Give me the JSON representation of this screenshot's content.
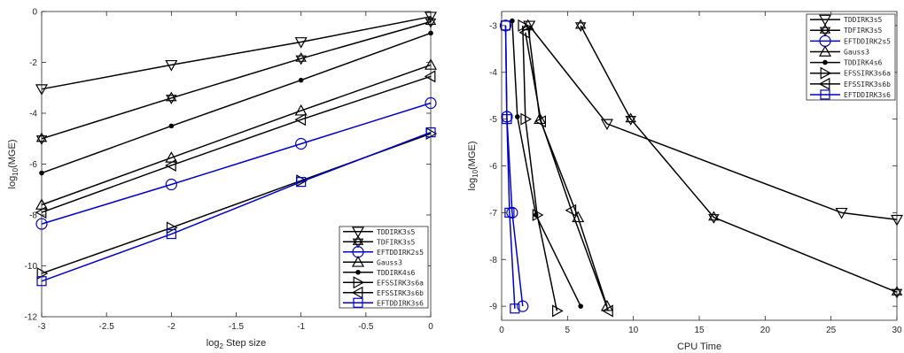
{
  "chart_data": [
    {
      "type": "line",
      "xlabel_main": "log",
      "xlabel_sub": "2",
      "xlabel_rest": " Step size",
      "ylabel_main": "log",
      "ylabel_sub": "10",
      "ylabel_rest": "(MGE)",
      "xlim": [
        -3,
        0
      ],
      "ylim": [
        -12,
        0
      ],
      "xticks": [
        -3,
        -2.5,
        -2,
        -1.5,
        -1,
        -0.5,
        0
      ],
      "yticks": [
        -12,
        -10,
        -8,
        -6,
        -4,
        -2,
        0
      ],
      "xtick_labels": [
        "-3",
        "-2.5",
        "-2",
        "-1.5",
        "-1",
        "-0.5",
        "0"
      ],
      "ytick_labels": [
        "-12",
        "-10",
        "-8",
        "-6",
        "-4",
        "-2",
        "0"
      ],
      "legend_position": "bottom-right",
      "series": [
        {
          "name": "TDDIRK3s5",
          "marker": "triangle-down",
          "color": "#000000",
          "x": [
            -3,
            -2,
            -1,
            0
          ],
          "y": [
            -3.05,
            -2.1,
            -1.2,
            -0.2
          ]
        },
        {
          "name": "TDFIRK3s5",
          "marker": "hexagram",
          "color": "#000000",
          "x": [
            -3,
            -2,
            -1,
            0
          ],
          "y": [
            -5.0,
            -3.4,
            -1.85,
            -0.4
          ]
        },
        {
          "name": "EFTDDIRK2s5",
          "marker": "circle",
          "color": "#0000cc",
          "x": [
            -3,
            -2,
            -1,
            0
          ],
          "y": [
            -8.35,
            -6.8,
            -5.2,
            -3.6
          ]
        },
        {
          "name": "Gauss3",
          "marker": "triangle-up",
          "color": "#000000",
          "x": [
            -3,
            -2,
            -1,
            0
          ],
          "y": [
            -7.6,
            -5.75,
            -3.9,
            -2.1
          ]
        },
        {
          "name": "TDDIRK4s6",
          "marker": "dot",
          "color": "#000000",
          "x": [
            -3,
            -2,
            -1,
            0
          ],
          "y": [
            -6.35,
            -4.5,
            -2.7,
            -0.85
          ]
        },
        {
          "name": "EFSSIRK3s6a",
          "marker": "triangle-right",
          "color": "#000000",
          "x": [
            -3,
            -2,
            -1,
            0
          ],
          "y": [
            -10.3,
            -8.5,
            -6.65,
            -4.8
          ]
        },
        {
          "name": "EFSSIRK3s6b",
          "marker": "triangle-left",
          "color": "#000000",
          "x": [
            -3,
            -2,
            -1,
            0
          ],
          "y": [
            -7.9,
            -6.05,
            -4.25,
            -2.55
          ]
        },
        {
          "name": "EFTDDIRK3s6",
          "marker": "square",
          "color": "#0000cc",
          "x": [
            -3,
            -2,
            -1,
            0
          ],
          "y": [
            -10.6,
            -8.75,
            -6.7,
            -4.75
          ]
        }
      ]
    },
    {
      "type": "line",
      "xlabel": "CPU Time",
      "ylabel_main": "log",
      "ylabel_sub": "10",
      "ylabel_rest": "(MGE)",
      "xlim": [
        0,
        30
      ],
      "ylim": [
        -9.3,
        -2.7
      ],
      "xticks": [
        0,
        5,
        10,
        15,
        20,
        25,
        30
      ],
      "yticks": [
        -9,
        -8,
        -7,
        -6,
        -5,
        -4,
        -3
      ],
      "xtick_labels": [
        "0",
        "5",
        "10",
        "15",
        "20",
        "25",
        "30"
      ],
      "ytick_labels": [
        "-9",
        "-8",
        "-7",
        "-6",
        "-5",
        "-4",
        "-3"
      ],
      "legend_position": "top-right",
      "series": [
        {
          "name": "TDDIRK3s5",
          "marker": "triangle-down",
          "color": "#000000",
          "x": [
            2.1,
            8.0,
            25.8,
            30.0
          ],
          "y": [
            -3.0,
            -5.1,
            -7.0,
            -7.15
          ]
        },
        {
          "name": "TDFIRK3s5",
          "marker": "hexagram",
          "color": "#000000",
          "x": [
            6.0,
            9.8,
            16.1,
            30.0
          ],
          "y": [
            -3.0,
            -5.0,
            -7.1,
            -8.7
          ]
        },
        {
          "name": "EFTDDIRK2s5",
          "marker": "circle",
          "color": "#0000cc",
          "x": [
            0.3,
            0.4,
            0.8,
            1.6
          ],
          "y": [
            -3.0,
            -4.95,
            -7.0,
            -9.0
          ]
        },
        {
          "name": "Gauss3",
          "marker": "triangle-up",
          "color": "#000000",
          "x": [
            2.0,
            2.9,
            5.8,
            8.0
          ],
          "y": [
            -3.0,
            -5.0,
            -7.1,
            -9.0
          ]
        },
        {
          "name": "TDDIRK4s6",
          "marker": "dot",
          "color": "#000000",
          "x": [
            0.8,
            1.2,
            2.6,
            6.0
          ],
          "y": [
            -2.9,
            -4.95,
            -7.05,
            -9.0
          ]
        },
        {
          "name": "EFSSIRK3s6a",
          "marker": "triangle-right",
          "color": "#000000",
          "x": [
            1.6,
            1.8,
            2.7,
            4.2
          ],
          "y": [
            -3.0,
            -5.0,
            -7.05,
            -9.1
          ]
        },
        {
          "name": "EFSSIRK3s6b",
          "marker": "triangle-left",
          "color": "#000000",
          "x": [
            1.8,
            3.0,
            5.3,
            8.1
          ],
          "y": [
            -3.15,
            -5.05,
            -6.95,
            -9.1
          ]
        },
        {
          "name": "EFTDDIRK3s6",
          "marker": "square",
          "color": "#0000cc",
          "x": [
            0.3,
            0.4,
            0.6,
            1.0
          ],
          "y": [
            -3.0,
            -5.0,
            -7.0,
            -9.05
          ]
        }
      ]
    }
  ]
}
